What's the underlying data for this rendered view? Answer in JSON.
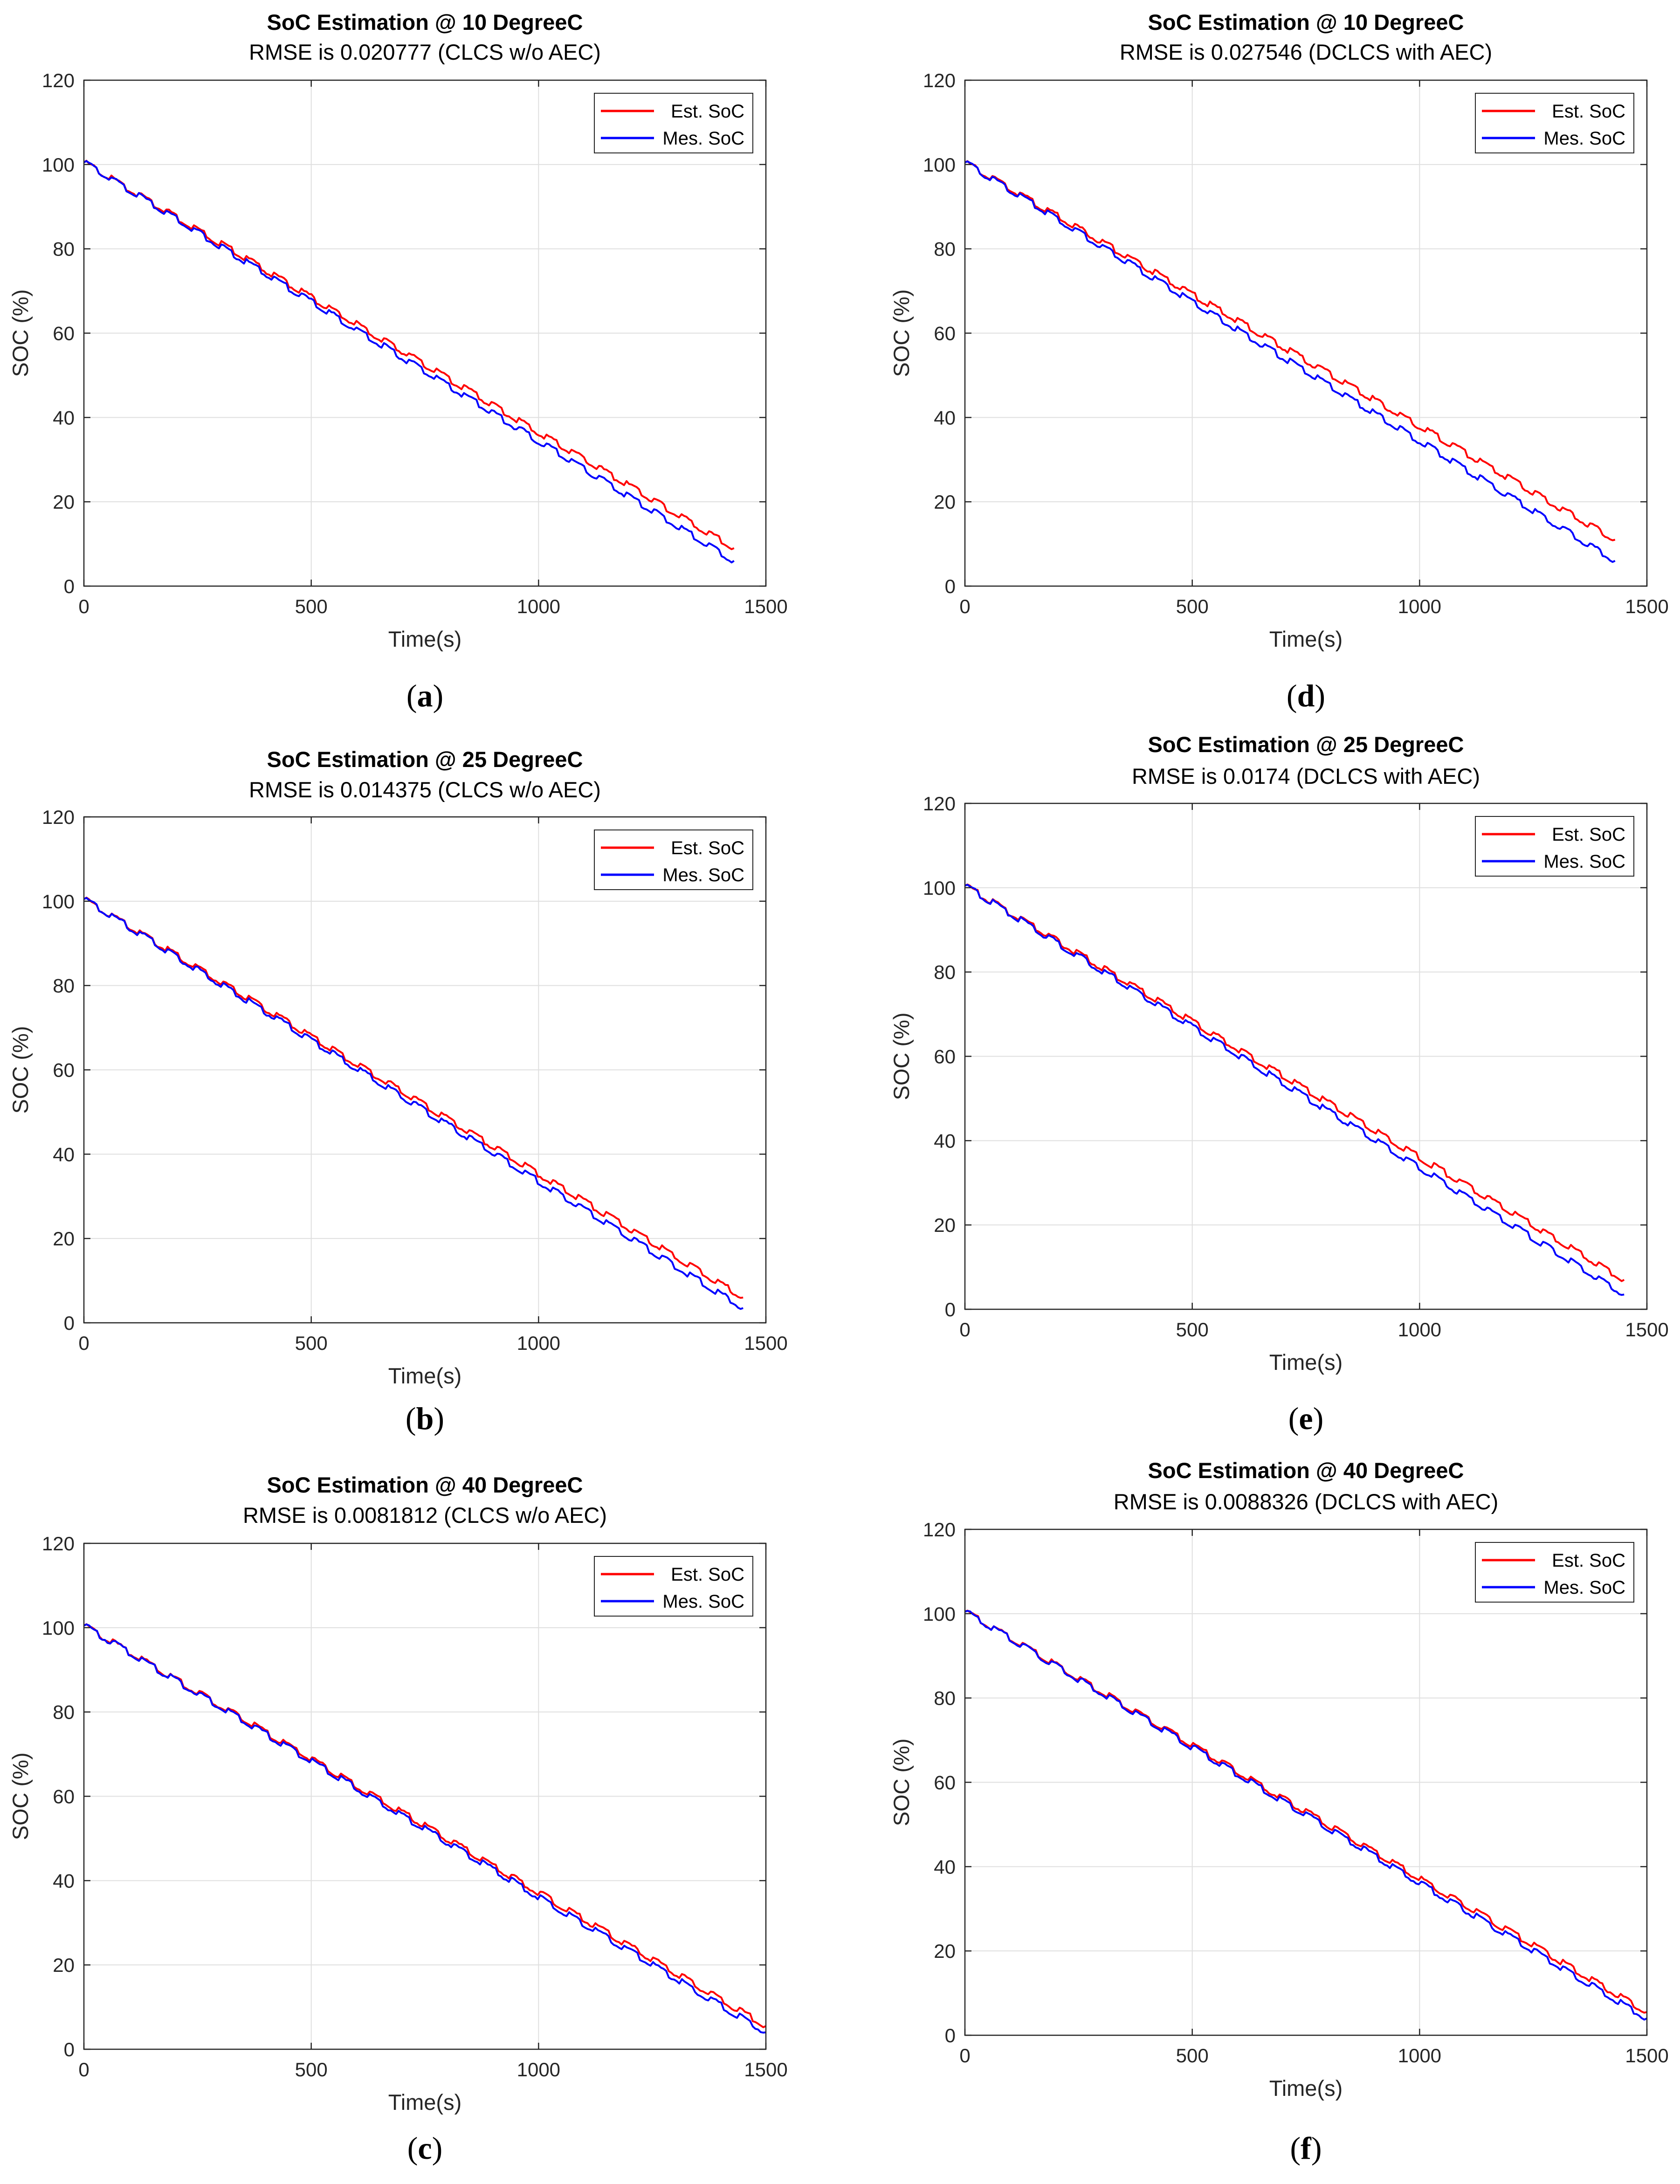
{
  "chart_data": [
    {
      "id": "a",
      "type": "line",
      "caption_letter": "a",
      "title": "SoC Estimation @ 10 DegreeC",
      "subtitle": "RMSE is 0.020777 (CLCS w/o AEC)",
      "xlabel": "Time(s)",
      "ylabel": "SOC (%)",
      "xlim": [
        0,
        1500
      ],
      "ylim": [
        0,
        120
      ],
      "xticks": [
        0,
        500,
        1000,
        1500
      ],
      "yticks": [
        0,
        20,
        40,
        60,
        80,
        100,
        120
      ],
      "grid": true,
      "legend_position": "top-right",
      "series": [
        {
          "name": "Est. SoC",
          "color": "#ff0000",
          "x": [
            0,
            1430
          ],
          "y": [
            100.5,
            9
          ]
        },
        {
          "name": "Mes. SoC",
          "color": "#0000ff",
          "x": [
            0,
            1430
          ],
          "y": [
            100.5,
            6
          ]
        }
      ]
    },
    {
      "id": "b",
      "type": "line",
      "caption_letter": "b",
      "title": "SoC Estimation @ 25 DegreeC",
      "subtitle": "RMSE is 0.014375 (CLCS w/o AEC)",
      "xlabel": "Time(s)",
      "ylabel": "SOC (%)",
      "xlim": [
        0,
        1500
      ],
      "ylim": [
        0,
        120
      ],
      "xticks": [
        0,
        500,
        1000,
        1500
      ],
      "yticks": [
        0,
        20,
        40,
        60,
        80,
        100,
        120
      ],
      "grid": true,
      "legend_position": "top-right",
      "series": [
        {
          "name": "Est. SoC",
          "color": "#ff0000",
          "x": [
            0,
            1450
          ],
          "y": [
            100.5,
            6
          ]
        },
        {
          "name": "Mes. SoC",
          "color": "#0000ff",
          "x": [
            0,
            1450
          ],
          "y": [
            100.5,
            3.5
          ]
        }
      ]
    },
    {
      "id": "c",
      "type": "line",
      "caption_letter": "c",
      "title": "SoC Estimation @ 40 DegreeC",
      "subtitle": "RMSE is 0.0081812 (CLCS w/o AEC)",
      "xlabel": "Time(s)",
      "ylabel": "SOC (%)",
      "xlim": [
        0,
        1500
      ],
      "ylim": [
        0,
        120
      ],
      "xticks": [
        0,
        500,
        1000,
        1500
      ],
      "yticks": [
        0,
        20,
        40,
        60,
        80,
        100,
        120
      ],
      "grid": true,
      "legend_position": "top-right",
      "series": [
        {
          "name": "Est. SoC",
          "color": "#ff0000",
          "x": [
            0,
            1500
          ],
          "y": [
            100.5,
            5.5
          ]
        },
        {
          "name": "Mes. SoC",
          "color": "#0000ff",
          "x": [
            0,
            1500
          ],
          "y": [
            100.5,
            4
          ]
        }
      ]
    },
    {
      "id": "d",
      "type": "line",
      "caption_letter": "d",
      "title": "SoC Estimation @ 10 DegreeC",
      "subtitle": "RMSE is 0.027546 (DCLCS with AEC)",
      "xlabel": "Time(s)",
      "ylabel": "SOC (%)",
      "xlim": [
        0,
        1500
      ],
      "ylim": [
        0,
        120
      ],
      "xticks": [
        0,
        500,
        1000,
        1500
      ],
      "yticks": [
        0,
        20,
        40,
        60,
        80,
        100,
        120
      ],
      "grid": true,
      "legend_position": "top-right",
      "series": [
        {
          "name": "Est. SoC",
          "color": "#ff0000",
          "x": [
            0,
            1430
          ],
          "y": [
            100.5,
            11
          ]
        },
        {
          "name": "Mes. SoC",
          "color": "#0000ff",
          "x": [
            0,
            1430
          ],
          "y": [
            100.5,
            6
          ]
        }
      ]
    },
    {
      "id": "e",
      "type": "line",
      "caption_letter": "e",
      "title": "SoC Estimation @ 25 DegreeC",
      "subtitle": "RMSE is 0.0174 (DCLCS with AEC)",
      "xlabel": "Time(s)",
      "ylabel": "SOC (%)",
      "xlim": [
        0,
        1500
      ],
      "ylim": [
        0,
        120
      ],
      "xticks": [
        0,
        500,
        1000,
        1500
      ],
      "yticks": [
        0,
        20,
        40,
        60,
        80,
        100,
        120
      ],
      "grid": true,
      "legend_position": "top-right",
      "series": [
        {
          "name": "Est. SoC",
          "color": "#ff0000",
          "x": [
            0,
            1450
          ],
          "y": [
            100.5,
            7
          ]
        },
        {
          "name": "Mes. SoC",
          "color": "#0000ff",
          "x": [
            0,
            1450
          ],
          "y": [
            100.5,
            3.5
          ]
        }
      ]
    },
    {
      "id": "f",
      "type": "line",
      "caption_letter": "f",
      "title": "SoC Estimation @ 40 DegreeC",
      "subtitle": "RMSE is 0.0088326 (DCLCS with AEC)",
      "xlabel": "Time(s)",
      "ylabel": "SOC (%)",
      "xlim": [
        0,
        1500
      ],
      "ylim": [
        0,
        120
      ],
      "xticks": [
        0,
        500,
        1000,
        1500
      ],
      "yticks": [
        0,
        20,
        40,
        60,
        80,
        100,
        120
      ],
      "grid": true,
      "legend_position": "top-right",
      "series": [
        {
          "name": "Est. SoC",
          "color": "#ff0000",
          "x": [
            0,
            1500
          ],
          "y": [
            100.5,
            5.5
          ]
        },
        {
          "name": "Mes. SoC",
          "color": "#0000ff",
          "x": [
            0,
            1500
          ],
          "y": [
            100.5,
            4
          ]
        }
      ]
    }
  ]
}
